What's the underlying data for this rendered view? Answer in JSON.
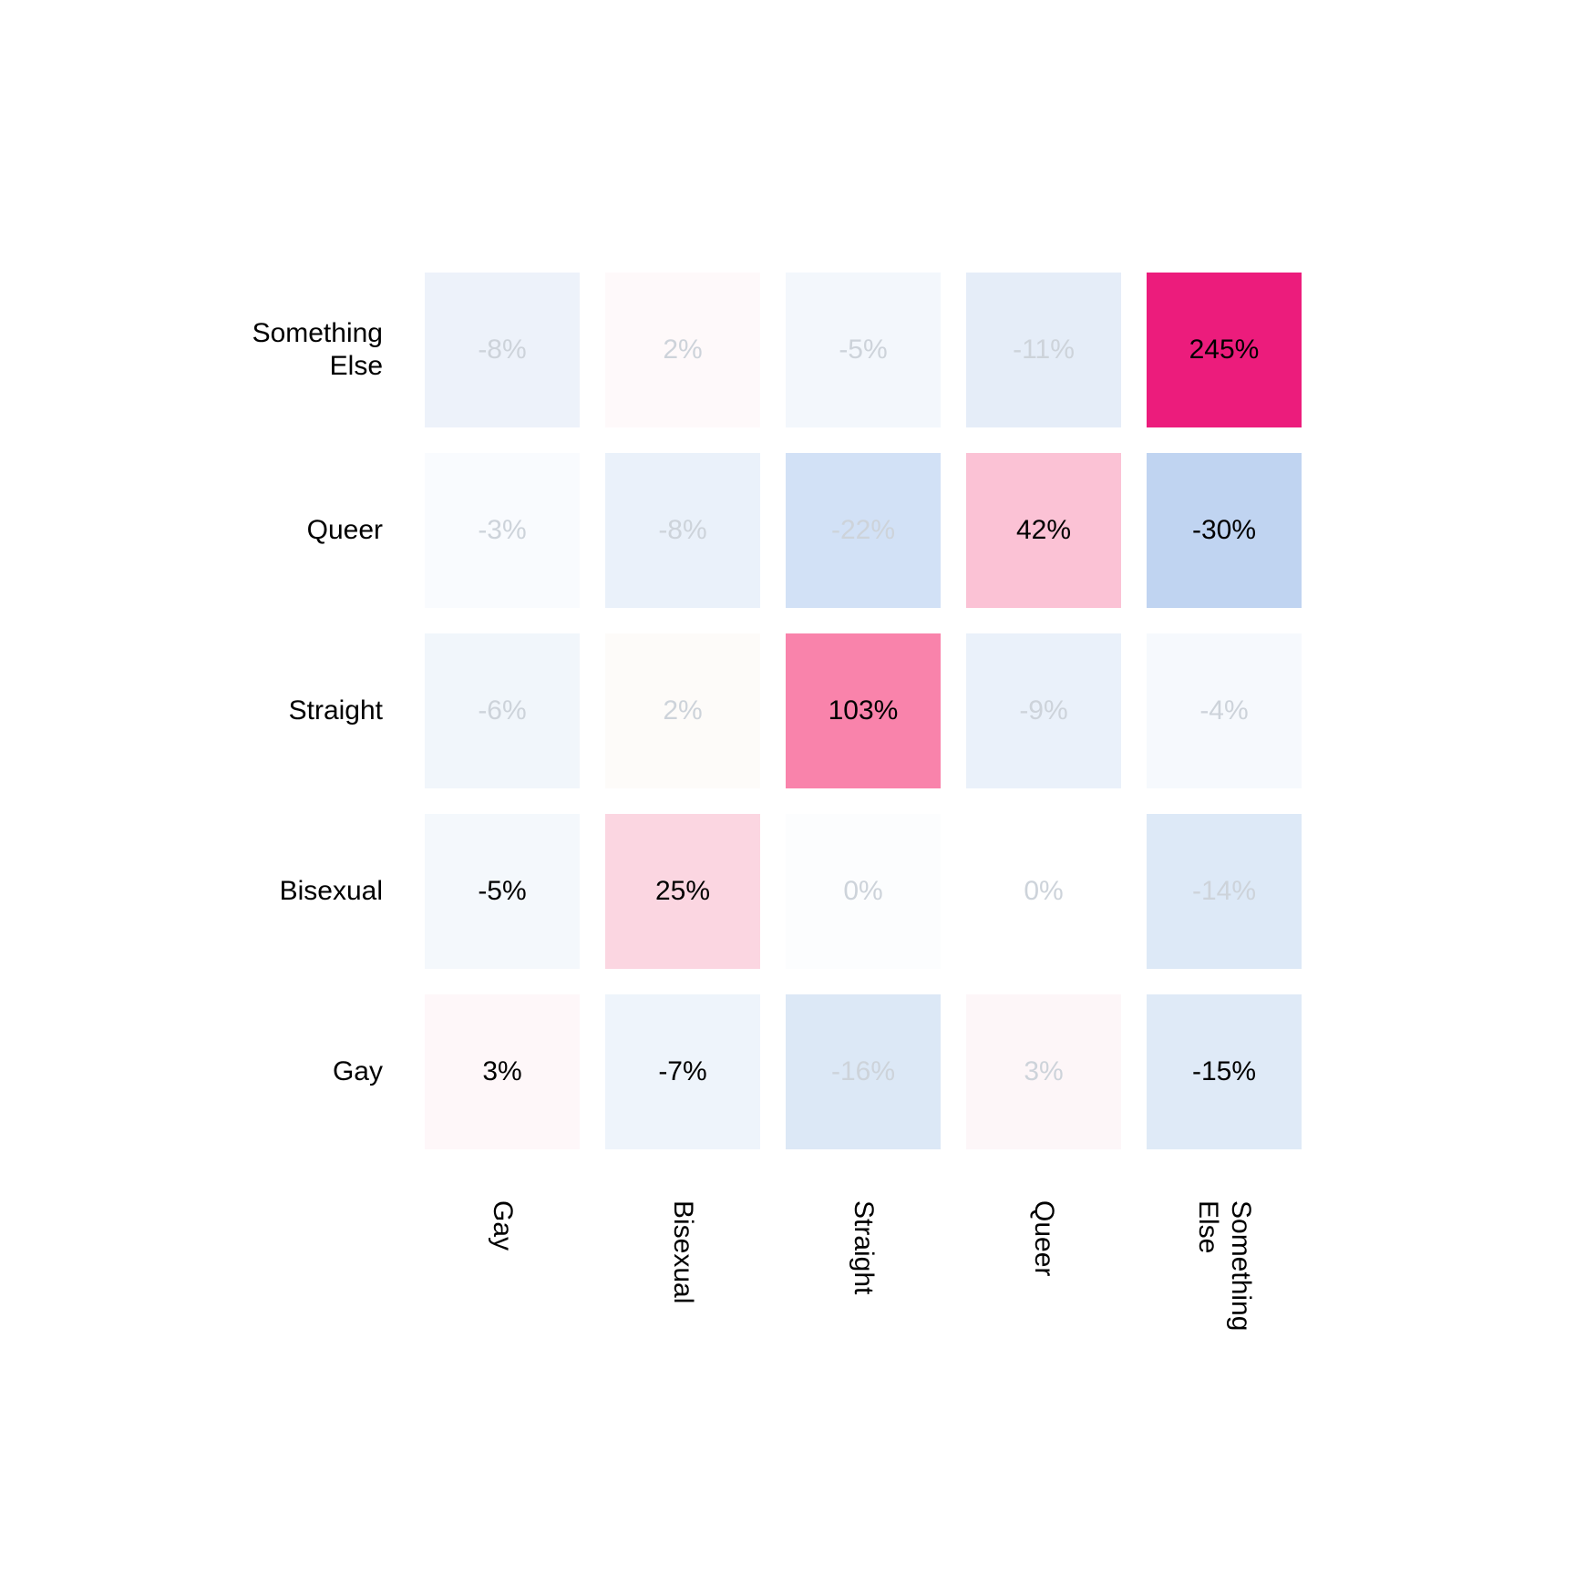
{
  "figure": {
    "background": "#FFFFFF",
    "muted_text_color": "#CDD3DA",
    "strong_text_color": "#000000"
  },
  "chart_data": {
    "type": "heatmap",
    "title": "",
    "legend": "none",
    "grid": "off",
    "unit": "percent",
    "x_axis_categories": [
      "Gay",
      "Bisexual",
      "Straight",
      "Queer",
      "Something\nElse"
    ],
    "y_axis_categories_top_to_bottom": [
      "Something\nElse",
      "Queer",
      "Straight",
      "Bisexual",
      "Gay"
    ],
    "values": [
      [
        -8,
        2,
        -5,
        -11,
        245
      ],
      [
        -3,
        -8,
        -22,
        42,
        -30
      ],
      [
        -6,
        2,
        103,
        -9,
        -4
      ],
      [
        -5,
        25,
        0,
        0,
        -14
      ],
      [
        3,
        -7,
        -16,
        3,
        -15
      ]
    ],
    "cell_labels": [
      [
        "-8%",
        "2%",
        "-5%",
        "-11%",
        "245%"
      ],
      [
        "-3%",
        "-8%",
        "-22%",
        "42%",
        "-30%"
      ],
      [
        "-6%",
        "2%",
        "103%",
        "-9%",
        "-4%"
      ],
      [
        "-5%",
        "25%",
        "0%",
        "0%",
        "-14%"
      ],
      [
        "3%",
        "-7%",
        "-16%",
        "3%",
        "-15%"
      ]
    ],
    "cell_bg_colors": [
      [
        "#EDF2FA",
        "#FEF9FA",
        "#F3F7FC",
        "#E5EDF8",
        "#EC1C7C"
      ],
      [
        "#F9FBFE",
        "#EAF1FA",
        "#D2E1F6",
        "#FBC2D5",
        "#C0D4F1"
      ],
      [
        "#F1F6FB",
        "#FDFBF9",
        "#F983AB",
        "#EAF1FA",
        "#F6F9FD"
      ],
      [
        "#F4F8FC",
        "#FBD6E1",
        "#FCFDFE",
        "#FFFFFF",
        "#DDE9F7"
      ],
      [
        "#FEF7F9",
        "#EEF4FB",
        "#DCE8F6",
        "#FDF6F8",
        "#DFEAF7"
      ]
    ],
    "cell_text_colors": [
      [
        "#CDD3DA",
        "#CDD3DA",
        "#CDD3DA",
        "#CDD3DA",
        "#000000"
      ],
      [
        "#CDD3DA",
        "#CDD3DA",
        "#CDD3DA",
        "#000000",
        "#000000"
      ],
      [
        "#CDD3DA",
        "#CDD3DA",
        "#000000",
        "#CDD3DA",
        "#CDD3DA"
      ],
      [
        "#000000",
        "#000000",
        "#CDD3DA",
        "#CDD3DA",
        "#CDD3DA"
      ],
      [
        "#000000",
        "#000000",
        "#CDD3DA",
        "#CDD3DA",
        "#000000"
      ]
    ],
    "color_scale": {
      "positive_max": "#EC1C7C",
      "positive_mid": "#F983AB",
      "positive_low": "#FBC2D5",
      "negative_strong": "#C0D4F1",
      "neutral": "#FFFFFF"
    }
  }
}
